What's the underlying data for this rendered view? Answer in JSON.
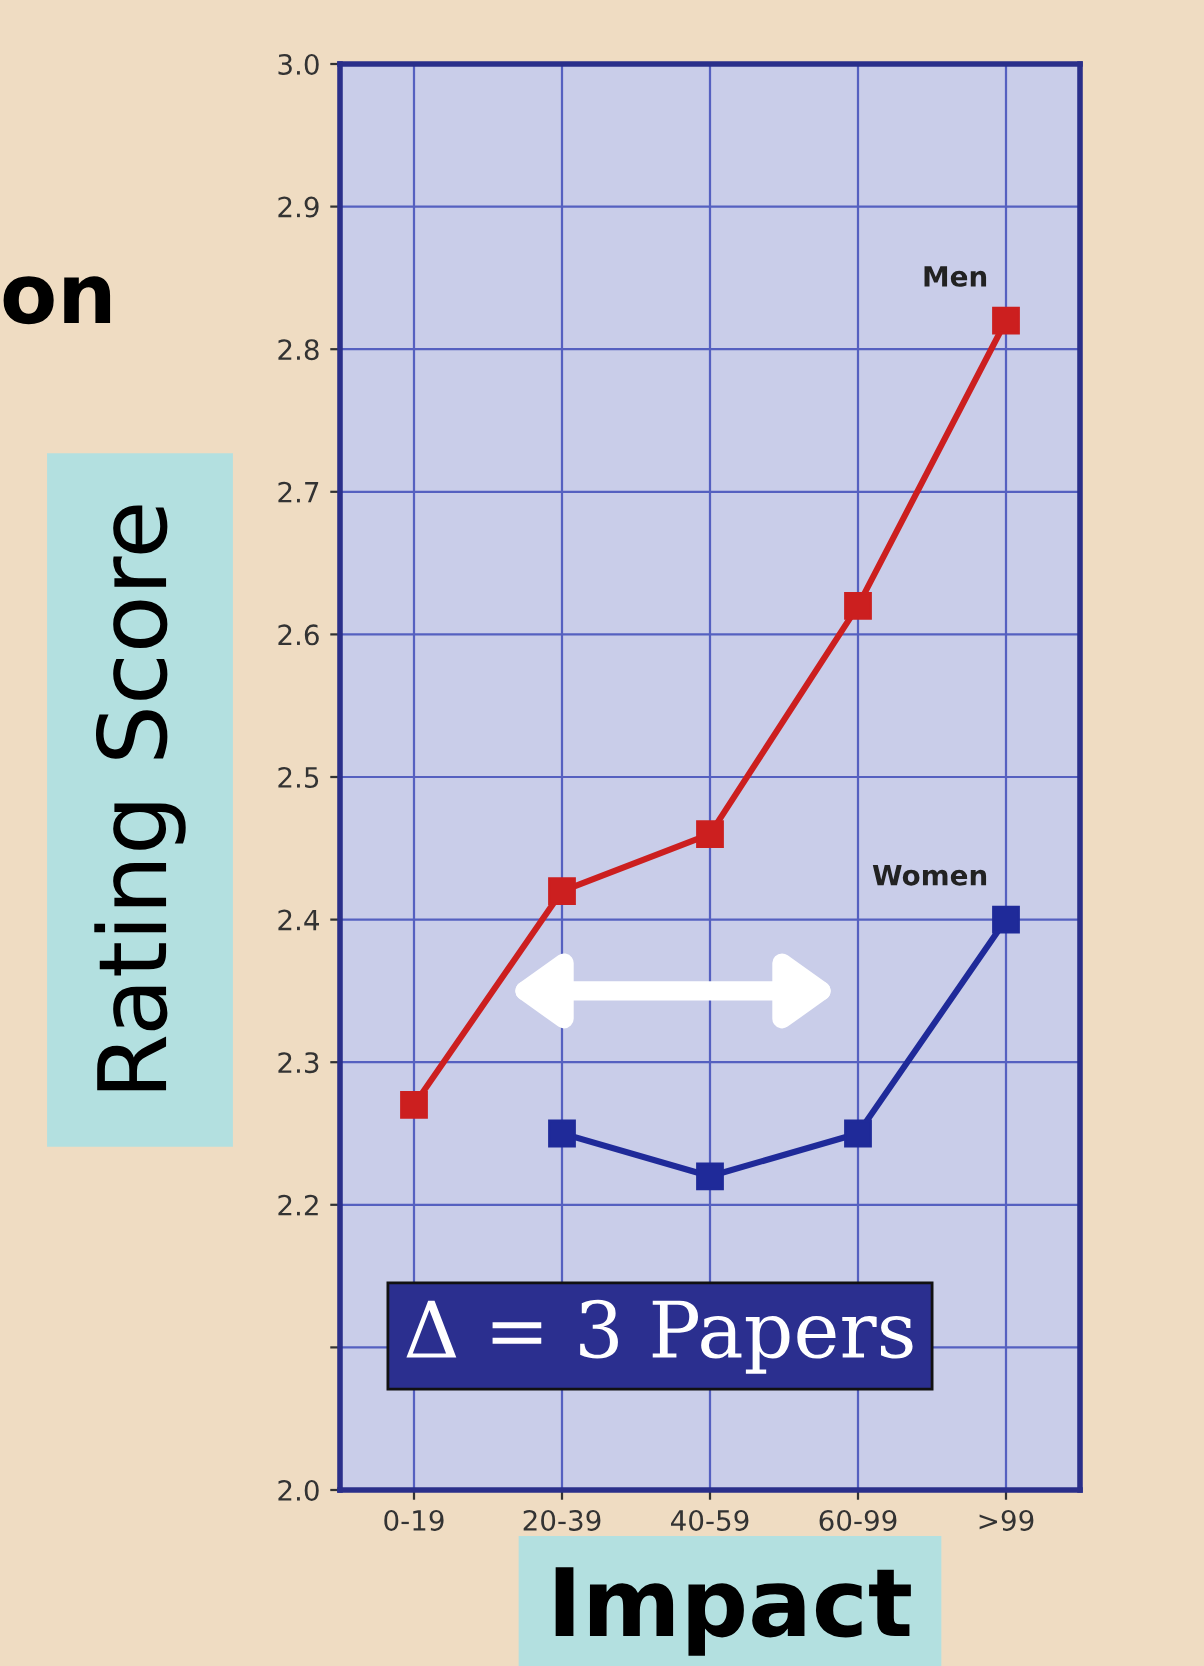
{
  "chart_data": {
    "type": "line",
    "title": "on",
    "ylabel": "Rating Score",
    "xlabel": "Impact",
    "categories": [
      "0-19",
      "20-39",
      "40-59",
      "60-99",
      ">99"
    ],
    "series": [
      {
        "name": "Men",
        "color": "#cc1f1f",
        "values": [
          2.27,
          2.42,
          2.46,
          2.62,
          2.82
        ]
      },
      {
        "name": "Women",
        "color": "#1f2a99",
        "values": [
          null,
          2.25,
          2.22,
          2.25,
          2.4
        ]
      }
    ],
    "ylim": [
      2.0,
      3.0
    ],
    "yticks": [
      {
        "value": 2.0,
        "label": "2.0"
      },
      {
        "value": 2.1,
        "label": null
      },
      2.2,
      2.3,
      2.4,
      2.5,
      2.6,
      2.7,
      2.8,
      2.9,
      {
        "value": 3.0,
        "label": "3.0"
      }
    ],
    "grid": true,
    "marker": "square",
    "line_style": "solid",
    "annotations": [
      "Δ = 3 Papers"
    ]
  }
}
